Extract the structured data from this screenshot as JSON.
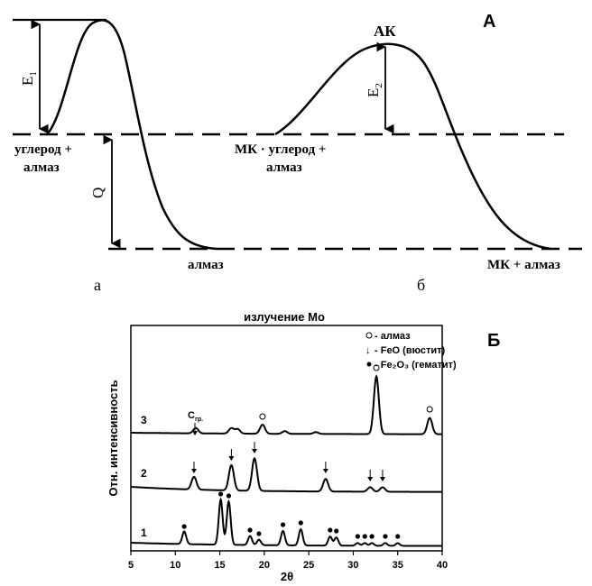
{
  "panel_a": {
    "label": "А",
    "sub_a": "а",
    "sub_b": "б",
    "left": {
      "e1": "E",
      "e1_sub": "1",
      "q": "Q",
      "start_line1": "углерод +",
      "start_line2": "алмаз",
      "end": "алмаз"
    },
    "right": {
      "peak": "АК",
      "e2": "E",
      "e2_sub": "2",
      "start_line1": "МК · углерод +",
      "start_line2": "алмаз",
      "end": "МК + алмаз"
    }
  },
  "panel_b": {
    "label": "Б",
    "chart_data": {
      "type": "line",
      "title": "излучение Mo",
      "xlabel": "2θ",
      "ylabel": "Отн. интенсивность",
      "xlim": [
        5,
        40
      ],
      "x_ticks": [
        "5",
        "10",
        "15",
        "20",
        "25",
        "30",
        "35",
        "40"
      ],
      "legend": [
        {
          "marker": "○",
          "label": "- алмаз"
        },
        {
          "marker": "↓",
          "label": "- FeO (вюстит)"
        },
        {
          "marker": "•",
          "label": "- Fe₂O₃ (гематит)"
        }
      ],
      "series": [
        {
          "name": "1",
          "markers": "•",
          "peaks_2theta": [
            11.0,
            15.1,
            16.0,
            18.4,
            19.4,
            22.1,
            24.1,
            27.4,
            28.1,
            30.5,
            31.3,
            32.1,
            33.6,
            35.0
          ]
        },
        {
          "name": "2",
          "markers": "↓",
          "peaks_2theta": [
            12.1,
            16.3,
            18.9,
            26.9,
            31.9,
            33.3
          ]
        },
        {
          "name": "3",
          "markers": "○",
          "peaks_2theta": [
            19.8,
            32.6,
            38.6
          ],
          "annotation": {
            "text": "C",
            "sub": "гр.",
            "x": 12.3
          }
        }
      ]
    }
  }
}
